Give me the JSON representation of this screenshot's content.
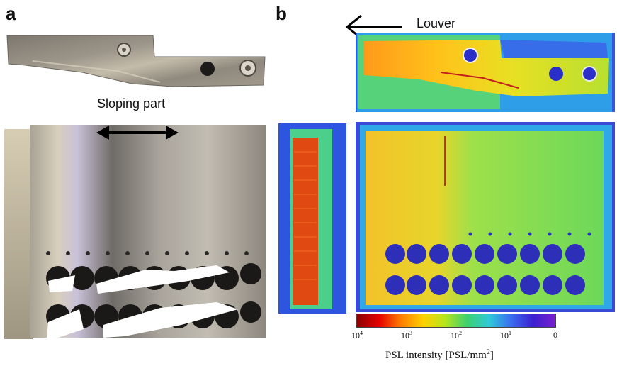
{
  "panels": {
    "a": {
      "letter": "a",
      "sloping_part_label": "Sloping part"
    },
    "b": {
      "letter": "b",
      "louver_label": "Louver",
      "colorbar": {
        "ticks": [
          {
            "base": "10",
            "exp": "4"
          },
          {
            "base": "10",
            "exp": "3"
          },
          {
            "base": "10",
            "exp": "2"
          },
          {
            "base": "10",
            "exp": "1"
          },
          {
            "base": "0",
            "exp": ""
          }
        ],
        "label_main": "PSL intensity [PSL/mm",
        "label_sup": "2",
        "label_end": "]",
        "colors": [
          "#8b0000",
          "#e60000",
          "#ff7f00",
          "#ffd000",
          "#b5e61d",
          "#3cd070",
          "#2fc9d9",
          "#3a6cf0",
          "#3a1fd0",
          "#7a1fd0"
        ]
      }
    }
  }
}
